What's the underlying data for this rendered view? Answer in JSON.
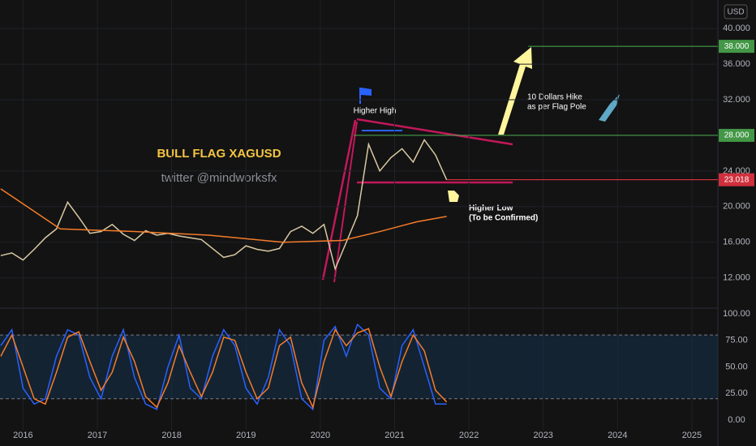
{
  "chart_data": [
    {
      "type": "line",
      "title": "BULL FLAG XAGUSD",
      "subtitle": "twitter @mindworksfx",
      "unit": "USD",
      "annotations": [
        "Higher High",
        "10 Dollars Hike",
        "as per Flag Pole",
        "Higher Low",
        "(To be Confirmed)"
      ],
      "xlim": [
        2015.69,
        2025.35
      ],
      "xticks": [
        2016,
        2017,
        2018,
        2019,
        2020,
        2021,
        2022,
        2023,
        2024,
        2025
      ],
      "ylim": [
        8.6,
        43.2
      ],
      "yticks": [
        {
          "value": 12,
          "label": "12.000"
        },
        {
          "value": 16,
          "label": "16.000"
        },
        {
          "value": 20,
          "label": "20.000"
        },
        {
          "value": 24,
          "label": "24.000"
        },
        {
          "value": 32,
          "label": "32.000"
        },
        {
          "value": 36,
          "label": "36.000"
        },
        {
          "value": 40,
          "label": "40.000"
        }
      ],
      "grid": true,
      "levels": [
        {
          "value": 38,
          "label": "38.000",
          "x": 2022.8,
          "color": "#4caf50"
        },
        {
          "value": 28,
          "label": "28.000",
          "x": 2020.45,
          "color": "#4caf50"
        },
        {
          "value": 23.018,
          "label": "23.018",
          "x": 2021.7,
          "color": "#f23645"
        }
      ],
      "series": [
        {
          "color": "#d9c9a3",
          "x": [
            2015.7,
            2015.85,
            2016.0,
            2016.15,
            2016.3,
            2016.45,
            2016.6,
            2016.75,
            2016.9,
            2017.05,
            2017.2,
            2017.35,
            2017.5,
            2017.65,
            2017.8,
            2017.95,
            2018.1,
            2018.25,
            2018.4,
            2018.55,
            2018.7,
            2018.85,
            2019.0,
            2019.15,
            2019.3,
            2019.45,
            2019.6,
            2019.75,
            2019.9,
            2020.05,
            2020.2,
            2020.35,
            2020.5,
            2020.65,
            2020.8,
            2020.95,
            2021.1,
            2021.25,
            2021.4,
            2021.55,
            2021.7
          ],
          "values": [
            14.5,
            14.8,
            14.0,
            15.2,
            16.5,
            17.5,
            20.5,
            18.8,
            17.0,
            17.2,
            18.0,
            16.9,
            16.2,
            17.3,
            16.8,
            17.0,
            16.7,
            16.5,
            16.3,
            15.3,
            14.3,
            14.6,
            15.6,
            15.2,
            15.0,
            15.3,
            17.2,
            17.8,
            17.0,
            18.0,
            13.0,
            16.0,
            19.0,
            27.0,
            24.0,
            25.5,
            26.5,
            25.0,
            27.5,
            25.8,
            23.018
          ]
        },
        {
          "color": "#f57c2a",
          "x": [
            2015.7,
            2016.5,
            2017.5,
            2018.5,
            2019.5,
            2020.3,
            2020.8,
            2021.3,
            2021.7
          ],
          "values": [
            22.0,
            17.5,
            17.2,
            16.8,
            16.0,
            16.2,
            17.2,
            18.3,
            18.9
          ]
        }
      ]
    },
    {
      "type": "line",
      "xlim": [
        2015.69,
        2025.35
      ],
      "ylim": [
        -9.2,
        105.3
      ],
      "yticks": [
        {
          "value": 0,
          "label": "0.00"
        },
        {
          "value": 25,
          "label": "25.00"
        },
        {
          "value": 50,
          "label": "50.00"
        },
        {
          "value": 75,
          "label": "75.00"
        },
        {
          "value": 100,
          "label": "100.00"
        }
      ],
      "bands": [
        20,
        80
      ],
      "series": [
        {
          "color": "#2962ff",
          "x": [
            2015.7,
            2015.85,
            2016.0,
            2016.15,
            2016.3,
            2016.45,
            2016.6,
            2016.75,
            2016.9,
            2017.05,
            2017.2,
            2017.35,
            2017.5,
            2017.65,
            2017.8,
            2017.95,
            2018.1,
            2018.25,
            2018.4,
            2018.55,
            2018.7,
            2018.85,
            2019.0,
            2019.15,
            2019.3,
            2019.45,
            2019.6,
            2019.75,
            2019.9,
            2020.05,
            2020.2,
            2020.35,
            2020.5,
            2020.65,
            2020.8,
            2020.95,
            2021.1,
            2021.25,
            2021.4,
            2021.55,
            2021.7
          ],
          "values": [
            70,
            85,
            30,
            15,
            20,
            60,
            85,
            80,
            40,
            20,
            60,
            85,
            40,
            15,
            10,
            50,
            80,
            30,
            20,
            60,
            85,
            70,
            30,
            15,
            40,
            85,
            70,
            20,
            10,
            75,
            88,
            60,
            90,
            80,
            30,
            20,
            70,
            85,
            50,
            15,
            15
          ]
        },
        {
          "color": "#f57c2a",
          "x": [
            2015.7,
            2015.85,
            2016.0,
            2016.15,
            2016.3,
            2016.45,
            2016.6,
            2016.75,
            2016.9,
            2017.05,
            2017.2,
            2017.35,
            2017.5,
            2017.65,
            2017.8,
            2017.95,
            2018.1,
            2018.25,
            2018.4,
            2018.55,
            2018.7,
            2018.85,
            2019.0,
            2019.15,
            2019.3,
            2019.45,
            2019.6,
            2019.75,
            2019.9,
            2020.05,
            2020.2,
            2020.35,
            2020.5,
            2020.65,
            2020.8,
            2020.95,
            2021.1,
            2021.25,
            2021.4,
            2021.55,
            2021.7
          ],
          "values": [
            60,
            80,
            50,
            20,
            15,
            45,
            78,
            83,
            55,
            28,
            45,
            78,
            55,
            22,
            12,
            35,
            70,
            45,
            22,
            45,
            78,
            75,
            45,
            20,
            30,
            70,
            78,
            35,
            12,
            55,
            85,
            70,
            82,
            86,
            50,
            22,
            55,
            80,
            65,
            28,
            17
          ]
        }
      ]
    }
  ]
}
